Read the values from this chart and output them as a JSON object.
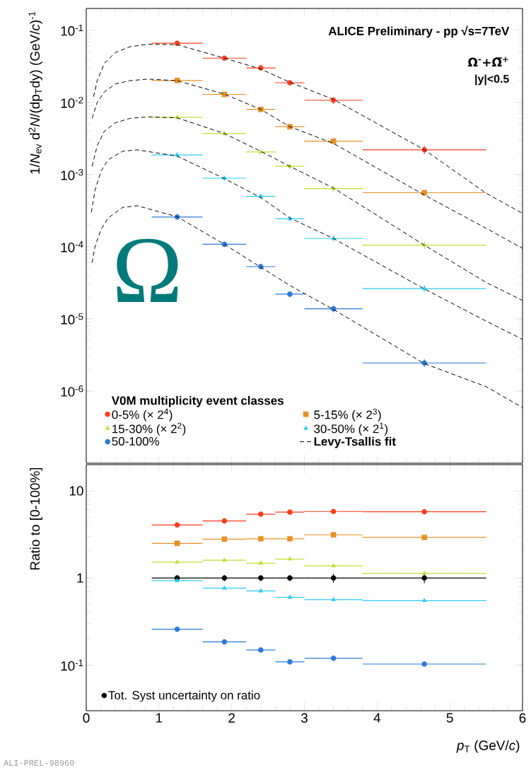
{
  "chart_data": [
    {
      "type": "scatter",
      "ylabel": "1/*N*$_{ev}$ d$^{2}$*N*/(dp$_{T}$dy)  (GeV/*c*)$^{-1}$",
      "legend_title": "V0M multiplicity event classes",
      "annotations": [
        "ALICE Preliminary - pp √s=7TeV",
        "Ω$^{-}$+Ω̅$^{+}$",
        "|y|<0.5",
        "Ω"
      ],
      "xlim": [
        0,
        6
      ],
      "xticks": [
        0,
        1,
        2,
        3,
        4,
        5,
        6
      ],
      "ylim": [
        1e-07,
        0.2
      ],
      "yticks": [
        {
          "value": 1e-06,
          "label": "10$^{-6}$"
        },
        {
          "value": 1e-05,
          "label": "10$^{-5}$"
        },
        {
          "value": 0.0001,
          "label": "10$^{-4}$"
        },
        {
          "value": 0.001,
          "label": "10$^{-3}$"
        },
        {
          "value": 0.01,
          "label": "10$^{-2}$"
        },
        {
          "value": 0.1,
          "label": "10$^{-1}$"
        }
      ],
      "log": true,
      "tick_labels": "y",
      "legend": "bottom left",
      "x": [
        1.25,
        1.9,
        2.4,
        2.8,
        3.4,
        4.65
      ],
      "series": [
        {
          "name": "0-5% (× 2$^{4}$)",
          "color": "#fa3c1e",
          "marker": "circle",
          "values": [
            0.066,
            0.041,
            0.03,
            0.0187,
            0.0107,
            0.0022
          ],
          "errors": [
            0.005,
            0.003,
            0.0024,
            0.0015,
            0.0012,
            0.0003
          ],
          "xerrors": [
            [
              0.9,
              1.6
            ],
            [
              1.6,
              2.2
            ],
            [
              2.2,
              2.6
            ],
            [
              2.6,
              3.0
            ],
            [
              3.0,
              3.8
            ],
            [
              3.8,
              5.5
            ]
          ]
        },
        {
          "name": "5-15% (× 2$^{3}$)",
          "color": "#e59124",
          "marker": "square",
          "values": [
            0.0201,
            0.0129,
            0.008,
            0.0046,
            0.0029,
            0.00056
          ],
          "errors": [
            0.0015,
            0.001,
            0.0006,
            0.0004,
            0.0003,
            6e-05
          ],
          "xerrors": [
            [
              0.9,
              1.6
            ],
            [
              1.6,
              2.2
            ],
            [
              2.2,
              2.6
            ],
            [
              2.6,
              3.0
            ],
            [
              3.0,
              3.8
            ],
            [
              3.8,
              5.5
            ]
          ]
        },
        {
          "name": "15-30% (× 2$^{2}$)",
          "color": "#bfde3a",
          "marker": "triangle",
          "values": [
            0.0062,
            0.0037,
            0.00206,
            0.0013,
            0.00064,
            0.000105
          ],
          "errors": [
            0.0005,
            0.0003,
            0.00016,
            0.0001,
            6e-05,
            1.2e-05
          ],
          "xerrors": [
            [
              0.9,
              1.6
            ],
            [
              1.6,
              2.2
            ],
            [
              2.2,
              2.6
            ],
            [
              2.6,
              3.0
            ],
            [
              3.0,
              3.8
            ],
            [
              3.8,
              5.5
            ]
          ]
        },
        {
          "name": "30-50% (× 2$^{1}$)",
          "color": "#2ccbf5",
          "marker": "triangle",
          "values": [
            0.00187,
            0.00089,
            0.0005,
            0.000244,
            0.00013,
            2.63e-05
          ],
          "errors": [
            0.00015,
            7e-05,
            4e-05,
            2e-05,
            1.2e-05,
            3e-06
          ],
          "xerrors": [
            [
              0.9,
              1.6
            ],
            [
              1.6,
              2.2
            ],
            [
              2.2,
              2.6
            ],
            [
              2.6,
              3.0
            ],
            [
              3.0,
              3.8
            ],
            [
              3.8,
              5.5
            ]
          ]
        },
        {
          "name": "50-100%",
          "color": "#2a7ad6",
          "marker": "circle",
          "values": [
            0.000258,
            0.000108,
            5.3e-05,
            2.2e-05,
            1.38e-05,
            2.45e-06
          ],
          "errors": [
            2e-05,
            9e-06,
            4.5e-06,
            2e-06,
            1.5e-06,
            3e-07
          ],
          "xerrors": [
            [
              0.9,
              1.6
            ],
            [
              1.6,
              2.2
            ],
            [
              2.2,
              2.6
            ],
            [
              2.6,
              3.0
            ],
            [
              3.0,
              3.8
            ],
            [
              3.8,
              5.5
            ]
          ]
        },
        {
          "type": "line",
          "name": "Levy-Tsallis fit",
          "color": "#000000",
          "line_style": "dashed",
          "x": [
            0.1,
            0.15,
            0.25,
            0.4,
            0.6,
            0.85,
            1.25,
            1.9,
            2.4,
            2.8,
            3.4,
            4.65,
            5.5,
            6
          ],
          "values": [
            0.012,
            0.02,
            0.035,
            0.049,
            0.059,
            0.064,
            0.063,
            0.041,
            0.029,
            0.019,
            0.011,
            0.0022,
            0.00055,
            0.00029
          ]
        },
        {
          "type": "line",
          "color": "#000000",
          "line_style": "dashed",
          "x": [
            0.08,
            0.15,
            0.25,
            0.4,
            0.6,
            0.85,
            1.25,
            1.9,
            2.4,
            2.8,
            3.4,
            4.65,
            5.5,
            6
          ],
          "values": [
            0.006,
            0.01,
            0.014,
            0.018,
            0.02,
            0.021,
            0.02,
            0.013,
            0.008,
            0.0046,
            0.0027,
            0.00052,
            0.00018,
            9.5e-05
          ]
        },
        {
          "type": "line",
          "color": "#000000",
          "line_style": "dashed",
          "x": [
            0.08,
            0.15,
            0.25,
            0.4,
            0.6,
            0.85,
            1.25,
            1.9,
            2.4,
            2.8,
            3.4,
            4.65,
            5.5,
            6
          ],
          "values": [
            0.0013,
            0.0025,
            0.004,
            0.0052,
            0.006,
            0.0063,
            0.0061,
            0.0037,
            0.0021,
            0.0013,
            0.00065,
            0.000105,
            3.2e-05,
            1.8e-05
          ]
        },
        {
          "type": "line",
          "color": "#000000",
          "line_style": "dashed",
          "x": [
            0.07,
            0.12,
            0.2,
            0.3,
            0.5,
            0.7,
            1.25,
            1.9,
            2.4,
            2.8,
            3.4,
            4.65,
            5.5,
            6
          ],
          "values": [
            0.0003,
            0.0006,
            0.0011,
            0.0016,
            0.0021,
            0.0022,
            0.0018,
            0.00088,
            0.00048,
            0.00025,
            0.00013,
            2.6e-05,
            9.3e-06,
            5.2e-06
          ]
        },
        {
          "type": "line",
          "color": "#000000",
          "line_style": "dashed",
          "x": [
            0.08,
            0.12,
            0.2,
            0.3,
            0.5,
            0.7,
            1.25,
            1.9,
            2.4,
            2.8,
            3.4,
            4.65,
            5.5,
            6
          ],
          "values": [
            6e-05,
            0.0001,
            0.00017,
            0.00025,
            0.00035,
            0.00037,
            0.00026,
            0.000108,
            5.2e-05,
            2.9e-05,
            1.35e-05,
            2.4e-06,
            1.15e-06,
            5.9e-07
          ]
        }
      ]
    },
    {
      "type": "scatter",
      "xlabel": "*p*$_{T}$ (GeV/*c*)",
      "ylabel": "Ratio to [0-100%]",
      "annotations": [
        "ALI-PREL-98960"
      ],
      "xlim": [
        0,
        6
      ],
      "xticks": [
        0,
        1,
        2,
        3,
        4,
        5,
        6
      ],
      "ylim": [
        0.03,
        20
      ],
      "yticks": [
        {
          "value": 0.1,
          "label": "10$^{-1}$"
        },
        1,
        10
      ],
      "log": true,
      "legend": "bottom left",
      "x": [
        1.25,
        1.9,
        2.4,
        2.8,
        3.4,
        4.65
      ],
      "series": [
        {
          "name": "Tot. Syst uncertainty on ratio",
          "color": "#000000",
          "marker": "circle",
          "values": [
            1,
            1,
            1,
            1,
            1,
            1
          ],
          "errors": [
            [
              0.92,
              1.08
            ],
            [
              0.92,
              1.08
            ],
            [
              0.92,
              1.08
            ],
            [
              0.92,
              1.08
            ],
            [
              0.88,
              1.12
            ],
            [
              0.87,
              1.14
            ]
          ],
          "xerrors": [
            [
              0.9,
              1.6
            ],
            [
              1.6,
              2.2
            ],
            [
              2.2,
              2.6
            ],
            [
              2.6,
              3.0
            ],
            [
              3.0,
              3.8
            ],
            [
              3.8,
              5.5
            ]
          ]
        },
        {
          "color": "#fa3c1e",
          "marker": "circle",
          "values": [
            4.06,
            4.52,
            5.4,
            5.7,
            5.8,
            5.75
          ],
          "xerrors": [
            [
              0.9,
              1.6
            ],
            [
              1.6,
              2.2
            ],
            [
              2.2,
              2.6
            ],
            [
              2.6,
              3.0
            ],
            [
              3.0,
              3.8
            ],
            [
              3.8,
              5.5
            ]
          ]
        },
        {
          "color": "#e59124",
          "marker": "square",
          "values": [
            2.5,
            2.79,
            2.82,
            2.82,
            3.13,
            2.92
          ],
          "xerrors": [
            [
              0.9,
              1.6
            ],
            [
              1.6,
              2.2
            ],
            [
              2.2,
              2.6
            ],
            [
              2.6,
              3.0
            ],
            [
              3.0,
              3.8
            ],
            [
              3.8,
              5.5
            ]
          ]
        },
        {
          "color": "#bfde3a",
          "marker": "triangle",
          "values": [
            1.52,
            1.6,
            1.48,
            1.65,
            1.38,
            1.13
          ],
          "xerrors": [
            [
              0.9,
              1.6
            ],
            [
              1.6,
              2.2
            ],
            [
              2.2,
              2.6
            ],
            [
              2.6,
              3.0
            ],
            [
              3.0,
              3.8
            ],
            [
              3.8,
              5.5
            ]
          ]
        },
        {
          "color": "#2ccbf5",
          "marker": "triangle",
          "values": [
            0.93,
            0.765,
            0.71,
            0.6,
            0.565,
            0.55
          ],
          "xerrors": [
            [
              0.9,
              1.6
            ],
            [
              1.6,
              2.2
            ],
            [
              2.2,
              2.6
            ],
            [
              2.6,
              3.0
            ],
            [
              3.0,
              3.8
            ],
            [
              3.8,
              5.5
            ]
          ]
        },
        {
          "color": "#2a7ad6",
          "marker": "circle",
          "values": [
            0.258,
            0.185,
            0.149,
            0.109,
            0.12,
            0.103
          ],
          "xerrors": [
            [
              0.9,
              1.6
            ],
            [
              1.6,
              2.2
            ],
            [
              2.2,
              2.6
            ],
            [
              2.6,
              3.0
            ],
            [
              3.0,
              3.8
            ],
            [
              3.8,
              5.5
            ]
          ]
        }
      ]
    }
  ]
}
